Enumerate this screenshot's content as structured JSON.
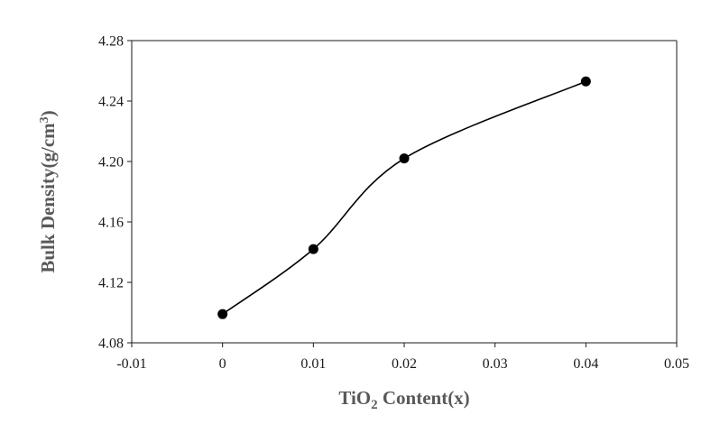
{
  "chart_data": {
    "type": "scatter",
    "smooth": true,
    "title": "",
    "xlabel": {
      "main": "TiO",
      "sub": "2",
      "rest": " Content(x)"
    },
    "ylabel": {
      "main": "Bulk Density(g/cm",
      "sup": "3",
      "rest": ")"
    },
    "xlim": [
      -0.01,
      0.05
    ],
    "ylim": [
      4.08,
      4.28
    ],
    "xticks": [
      "-0.01",
      "0",
      "0.01",
      "0.02",
      "0.03",
      "0.04",
      "0.05"
    ],
    "yticks": [
      "4.08",
      "4.12",
      "4.16",
      "4.20",
      "4.24",
      "4.28"
    ],
    "grid": false,
    "legend": "none",
    "series": [
      {
        "x": [
          0,
          0.01,
          0.02,
          0.04
        ],
        "y": [
          4.099,
          4.142,
          4.202,
          4.253
        ],
        "color": "#000000",
        "marker": "circle"
      }
    ]
  }
}
